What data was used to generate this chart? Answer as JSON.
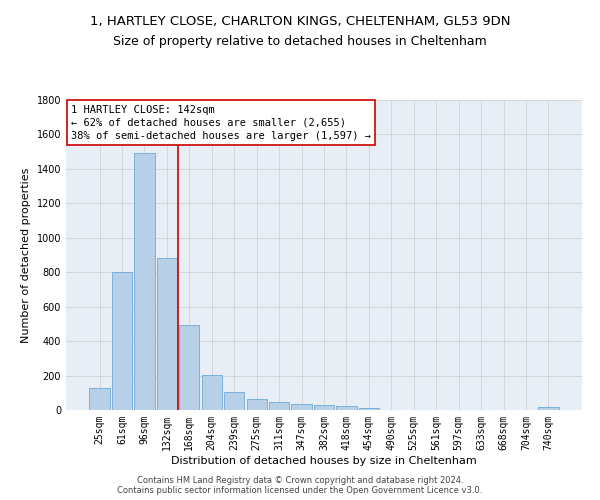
{
  "title_line1": "1, HARTLEY CLOSE, CHARLTON KINGS, CHELTENHAM, GL53 9DN",
  "title_line2": "Size of property relative to detached houses in Cheltenham",
  "xlabel": "Distribution of detached houses by size in Cheltenham",
  "ylabel": "Number of detached properties",
  "footer_line1": "Contains HM Land Registry data © Crown copyright and database right 2024.",
  "footer_line2": "Contains public sector information licensed under the Open Government Licence v3.0.",
  "bar_labels": [
    "25sqm",
    "61sqm",
    "96sqm",
    "132sqm",
    "168sqm",
    "204sqm",
    "239sqm",
    "275sqm",
    "311sqm",
    "347sqm",
    "382sqm",
    "418sqm",
    "454sqm",
    "490sqm",
    "525sqm",
    "561sqm",
    "597sqm",
    "633sqm",
    "668sqm",
    "704sqm",
    "740sqm"
  ],
  "bar_values": [
    125,
    800,
    1490,
    880,
    495,
    205,
    105,
    65,
    45,
    35,
    30,
    25,
    10,
    0,
    0,
    0,
    0,
    0,
    0,
    0,
    15
  ],
  "bar_color": "#b8cfe8",
  "bar_edge_color": "#5a9fd4",
  "ylim": [
    0,
    1800
  ],
  "yticks": [
    0,
    200,
    400,
    600,
    800,
    1000,
    1200,
    1400,
    1600,
    1800
  ],
  "property_label": "1 HARTLEY CLOSE: 142sqm",
  "pct_smaller": 62,
  "count_smaller": 2655,
  "pct_larger": 38,
  "count_larger": 1597,
  "annotation_box_color": "#ffffff",
  "annotation_box_edge": "#cc0000",
  "vline_color": "#cc0000",
  "background_color": "#ffffff",
  "plot_bg_color": "#e8eef5",
  "grid_color": "#cccccc",
  "title_fontsize": 9.5,
  "subtitle_fontsize": 9,
  "axis_label_fontsize": 8,
  "tick_fontsize": 7,
  "annotation_fontsize": 7.5,
  "footer_fontsize": 6
}
